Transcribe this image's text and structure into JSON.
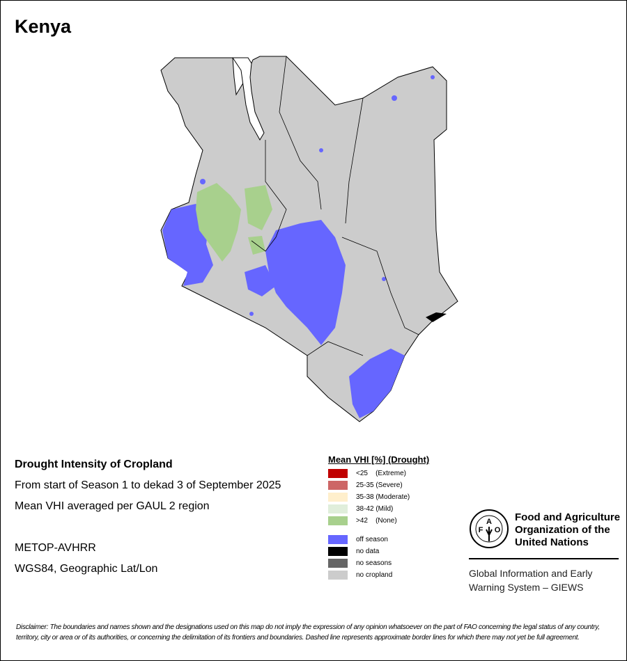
{
  "title": "Kenya",
  "info": {
    "heading": "Drought Intensity of Cropland",
    "period": "From start of Season 1 to dekad 3 of September 2025",
    "aggregation": "Mean VHI averaged per GAUL 2 region",
    "sensor": "METOP-AVHRR",
    "projection": "WGS84, Geographic Lat/Lon"
  },
  "legend": {
    "title": "Mean VHI [%] (Drought)",
    "items": [
      {
        "label": "<25    (Extreme)",
        "color": "#c00000"
      },
      {
        "label": "25-35 (Severe)",
        "color": "#cd6666"
      },
      {
        "label": "35-38 (Moderate)",
        "color": "#ffefcc"
      },
      {
        "label": "38-42 (Mild)",
        "color": "#e0eedb"
      },
      {
        "label": ">42    (None)",
        "color": "#a8d08d"
      },
      {
        "label": "off season",
        "color": "#6666ff"
      },
      {
        "label": "no data",
        "color": "#000000"
      },
      {
        "label": "no seasons",
        "color": "#666666"
      },
      {
        "label": "no cropland",
        "color": "#cccccc"
      }
    ]
  },
  "fao": {
    "logo_text": "FAO FIAT PANIS",
    "name": "Food and Agriculture Organization of the United Nations",
    "system": "Global Information and Early Warning System – GIEWS"
  },
  "disclaimer": "Disclaimer: The boundaries and names shown and the designations used on this map do not imply the expression of any opinion whatsoever on the part of FAO concerning the legal status of any country, territory, city or area or of its authorities, or concerning the delimitation of its frontiers and boundaries. Dashed line represents approximate border lines for which there may not yet be full agreement."
}
